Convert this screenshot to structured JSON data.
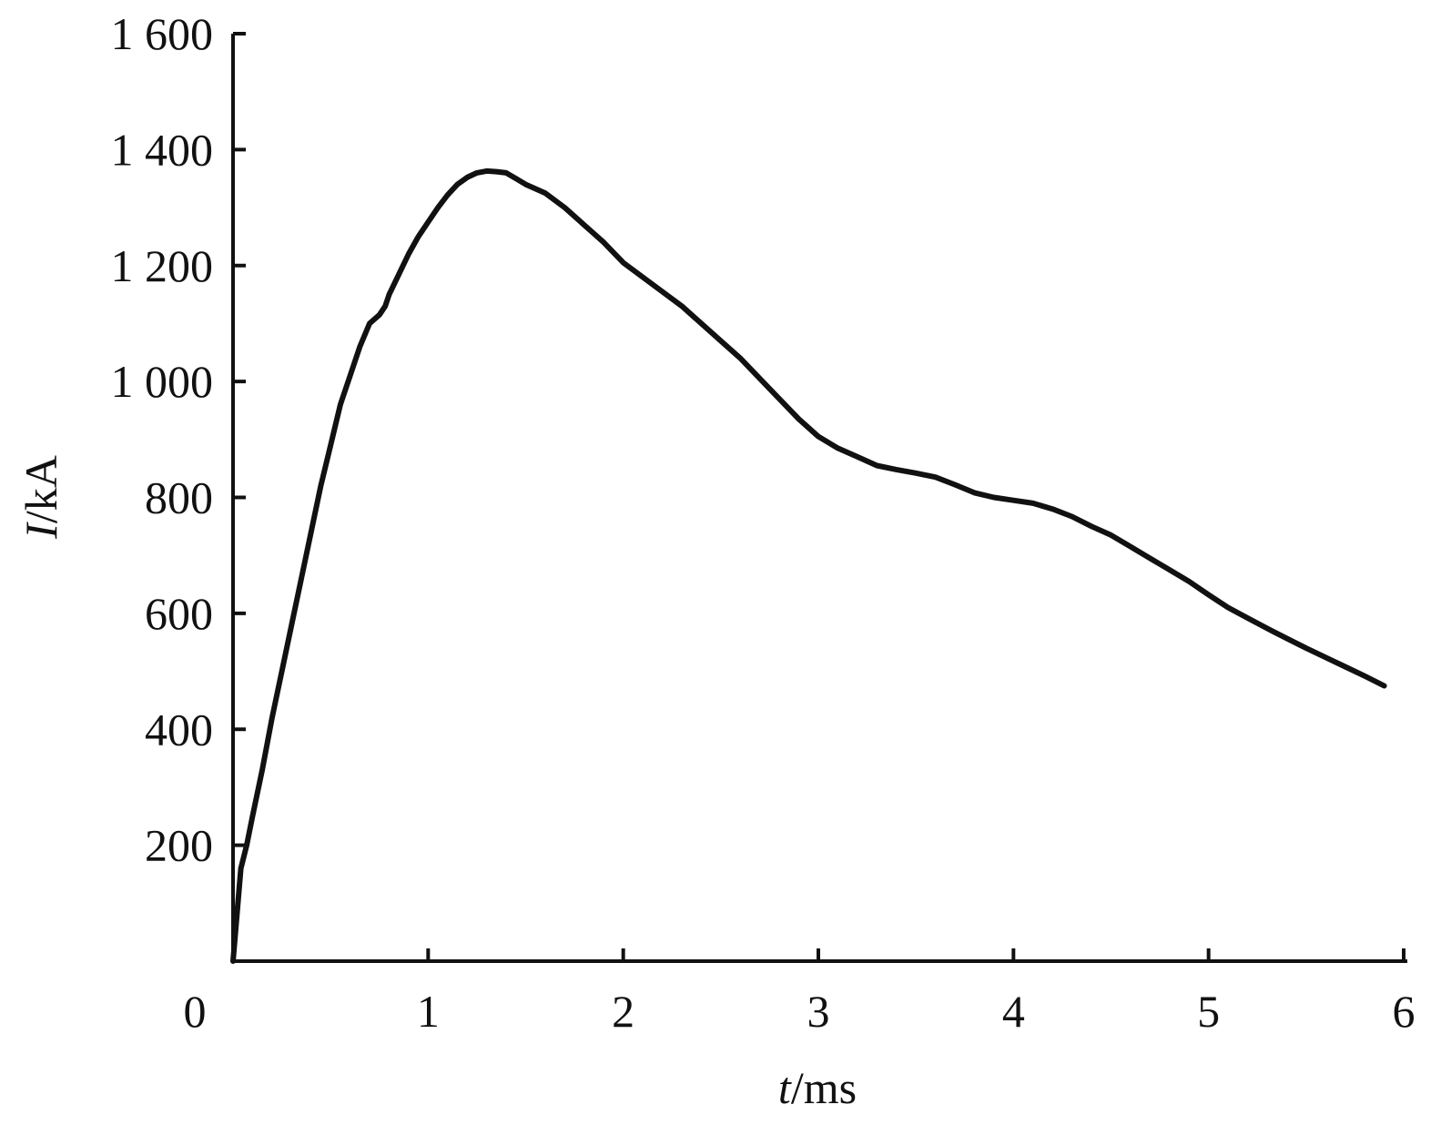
{
  "chart_data": {
    "type": "line",
    "title": "",
    "xlabel": {
      "symbol": "t",
      "unit": "/ms"
    },
    "ylabel": {
      "symbol": "I",
      "unit": "/kA"
    },
    "xlim": [
      0,
      6
    ],
    "ylim": [
      0,
      1600
    ],
    "xticks": [
      0,
      1,
      2,
      3,
      4,
      5,
      6
    ],
    "xtick_labels": [
      "0",
      "1",
      "2",
      "3",
      "4",
      "5",
      "6"
    ],
    "yticks": [
      200,
      400,
      600,
      800,
      1000,
      1200,
      1400,
      1600
    ],
    "ytick_labels": [
      "200",
      "400",
      "600",
      "800",
      "1 000",
      "1 200",
      "1 400",
      "1 600"
    ],
    "grid": false,
    "line_color": "#111111",
    "series": [
      {
        "x": [
          0.0,
          0.02,
          0.04,
          0.07,
          0.1,
          0.15,
          0.2,
          0.25,
          0.3,
          0.35,
          0.4,
          0.45,
          0.5,
          0.55,
          0.6,
          0.65,
          0.7,
          0.75,
          0.78,
          0.8,
          0.85,
          0.9,
          0.95,
          1.0,
          1.05,
          1.1,
          1.15,
          1.2,
          1.25,
          1.3,
          1.35,
          1.4,
          1.45,
          1.5,
          1.6,
          1.7,
          1.8,
          1.9,
          2.0,
          2.1,
          2.2,
          2.3,
          2.4,
          2.5,
          2.6,
          2.7,
          2.8,
          2.9,
          3.0,
          3.1,
          3.2,
          3.3,
          3.4,
          3.5,
          3.6,
          3.7,
          3.8,
          3.9,
          4.0,
          4.1,
          4.2,
          4.3,
          4.4,
          4.5,
          4.6,
          4.7,
          4.8,
          4.9,
          5.0,
          5.1,
          5.2,
          5.3,
          5.4,
          5.5,
          5.6,
          5.7,
          5.8,
          5.9
        ],
        "y": [
          0,
          80,
          160,
          200,
          250,
          330,
          420,
          500,
          580,
          660,
          740,
          820,
          890,
          960,
          1010,
          1060,
          1100,
          1115,
          1130,
          1150,
          1185,
          1220,
          1250,
          1275,
          1300,
          1322,
          1340,
          1352,
          1360,
          1363,
          1362,
          1360,
          1350,
          1340,
          1325,
          1300,
          1270,
          1240,
          1205,
          1180,
          1155,
          1130,
          1100,
          1070,
          1040,
          1005,
          970,
          935,
          905,
          885,
          870,
          855,
          848,
          842,
          835,
          822,
          808,
          800,
          795,
          790,
          780,
          767,
          750,
          735,
          715,
          695,
          675,
          655,
          632,
          610,
          592,
          574,
          557,
          540,
          524,
          508,
          492,
          475
        ]
      }
    ]
  }
}
